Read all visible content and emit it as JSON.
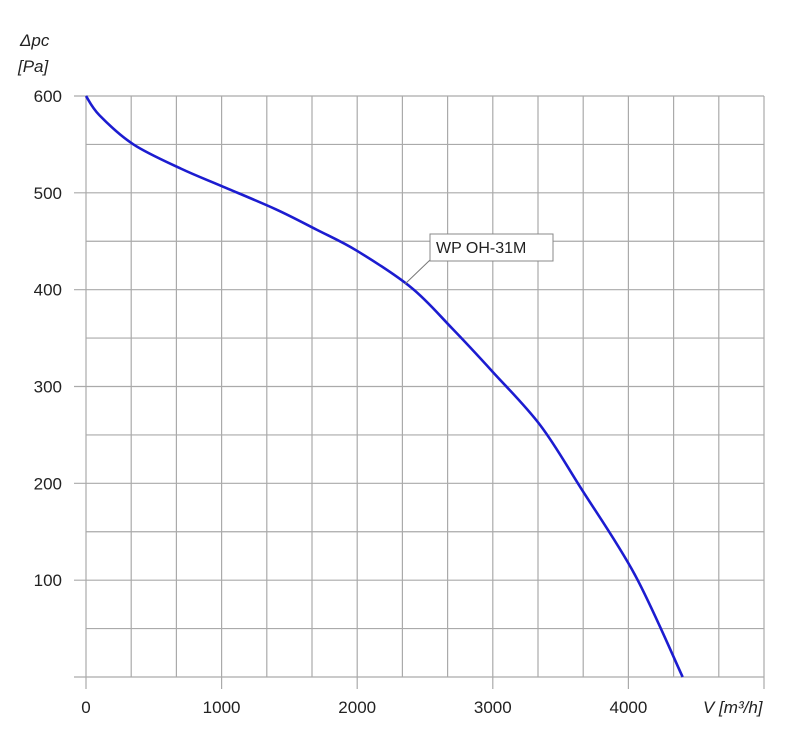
{
  "chart_data": {
    "type": "line",
    "ylabel_line1": "Δpc",
    "ylabel_line2": "[Pa]",
    "xlabel": "V [m³/h]",
    "xlim": [
      0,
      5000
    ],
    "ylim": [
      0,
      600
    ],
    "x_ticks": [
      0,
      1000,
      2000,
      3000,
      4000
    ],
    "y_ticks": [
      100,
      200,
      300,
      400,
      500,
      600
    ],
    "grid": true,
    "series": [
      {
        "name": "WP OH-31M",
        "color": "#1c1cd0",
        "x": [
          0,
          100,
          350,
          700,
          1000,
          1400,
          1700,
          2000,
          2400,
          2700,
          3000,
          3350,
          3650,
          4050,
          4400
        ],
        "y": [
          600,
          580,
          550,
          525,
          507,
          483,
          462,
          440,
          402,
          360,
          315,
          260,
          195,
          105,
          0
        ]
      }
    ]
  }
}
